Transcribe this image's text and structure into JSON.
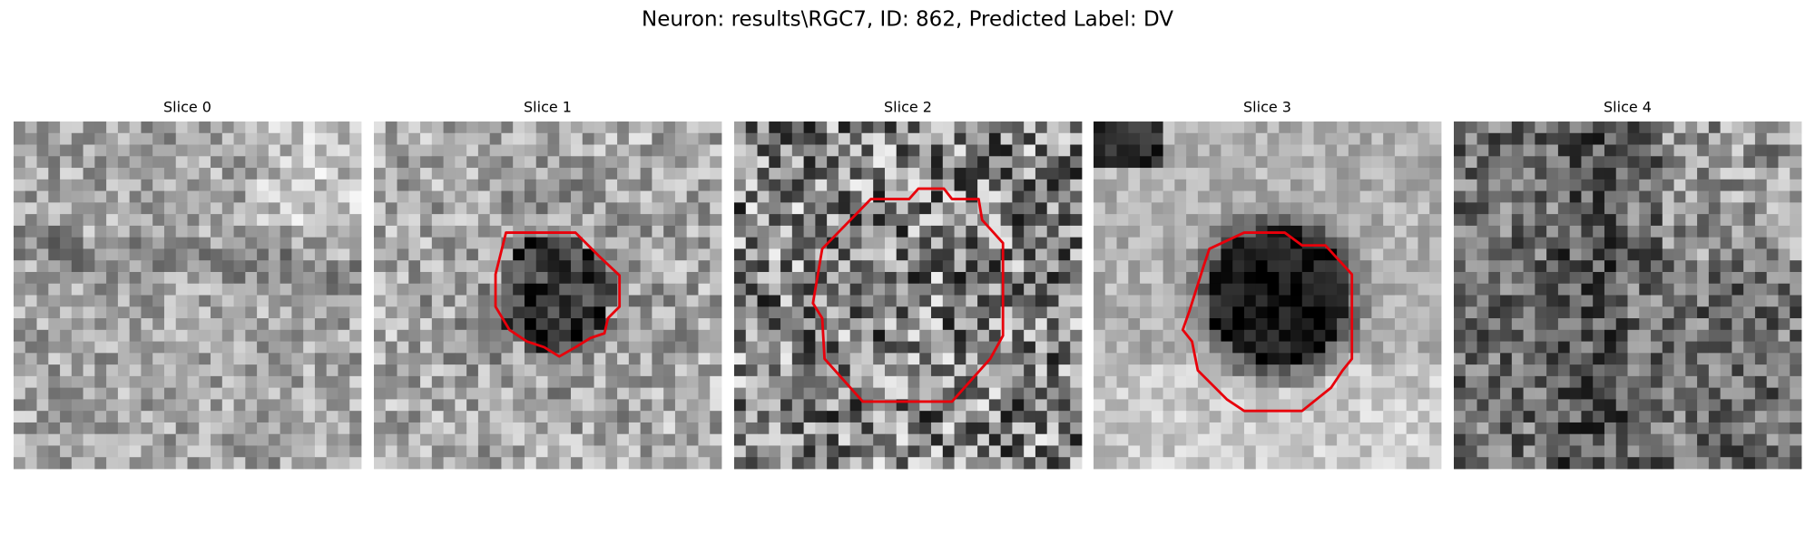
{
  "figure": {
    "title": "Neuron: results\\RGC7, ID: 862, Predicted Label: DV",
    "panels": [
      {
        "title": "Slice 0"
      },
      {
        "title": "Slice 1"
      },
      {
        "title": "Slice 2"
      },
      {
        "title": "Slice 3"
      },
      {
        "title": "Slice 4"
      }
    ]
  }
}
